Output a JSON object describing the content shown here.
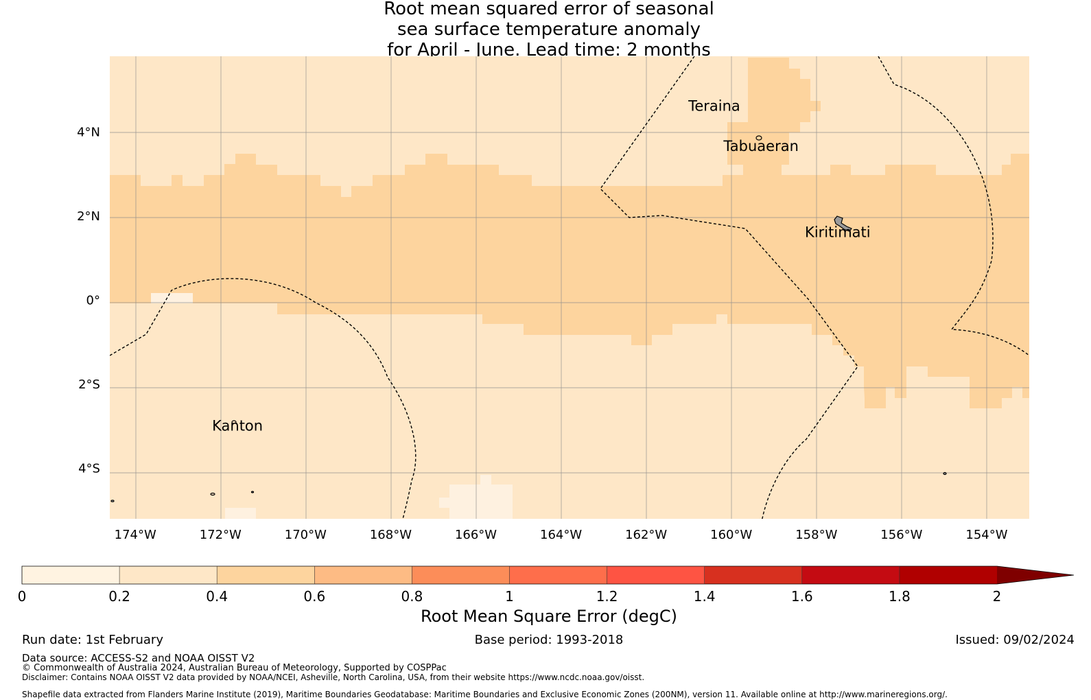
{
  "title": {
    "line1": "Root mean squared error of seasonal",
    "line2": "sea surface temperature anomaly",
    "line3": "for April - June. Lead time: 2 months"
  },
  "map": {
    "lon_range": [
      -174.6,
      -153.0
    ],
    "lat_range": [
      -5.2,
      5.8
    ],
    "x_ticks": [
      "174°W",
      "172°W",
      "170°W",
      "168°W",
      "166°W",
      "164°W",
      "162°W",
      "160°W",
      "158°W",
      "156°W",
      "154°W"
    ],
    "y_ticks": [
      "4°N",
      "2°N",
      "0°",
      "2°S",
      "4°S"
    ],
    "places": [
      {
        "name": "Teraina",
        "lon": -160.4,
        "lat": 4.5
      },
      {
        "name": "Tabuaeran",
        "lon": -159.3,
        "lat": 3.55
      },
      {
        "name": "Kiritimati",
        "lon": -157.5,
        "lat": 1.5
      },
      {
        "name": "Kanton",
        "lon": -171.6,
        "lat": -3.1
      }
    ],
    "band_rmse_degC": "0.4-0.6",
    "background_rmse_degC": "0.2-0.4",
    "colors": {
      "bg": "#fee7c7",
      "band": "#fdd49e",
      "light": "#fef1e0"
    }
  },
  "colorbar": {
    "tick_labels": [
      "0",
      "0.2",
      "0.4",
      "0.6",
      "0.8",
      "1",
      "1.2",
      "1.4",
      "1.6",
      "1.8",
      "2"
    ],
    "colors": [
      "#fff3e1",
      "#fee7c7",
      "#fdd49e",
      "#fdbb84",
      "#fc8d59",
      "#fe6e4b",
      "#fe5443",
      "#d7301f",
      "#c40b12",
      "#b00000",
      "#7f0000"
    ],
    "label": "Root Mean Square Error (degC)"
  },
  "footer": {
    "run_date": "Run date: 1st February",
    "base_period": "Base period: 1993-2018",
    "issued": "Issued: 09/02/2024",
    "data_source": "Data source: ACCESS-S2 and NOAA OISST V2",
    "copyright": "© Commonwealth of Australia 2024, Australian Bureau of Meteorology, Supported by COSPPac",
    "disclaimer": "Disclaimer: Contains NOAA OISST V2 data provided by NOAA/NCEI, Asheville, North Carolina, USA, from their website https://www.ncdc.noaa.gov/oisst.",
    "shapefile": "Shapefile data extracted from Flanders Marine Institute (2019), Maritime Boundaries Geodatabase: Maritime Boundaries and Exclusive Economic Zones (200NM), version 11. Available online at http://www.marineregions.org/."
  }
}
